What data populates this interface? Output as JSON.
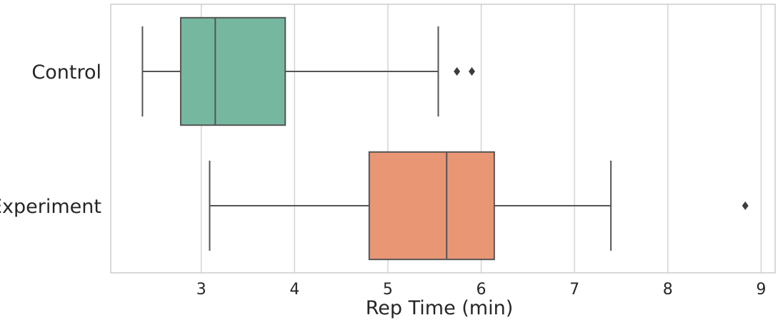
{
  "chart_data": {
    "type": "boxplot",
    "orientation": "horizontal",
    "xlabel": "Rep Time (min)",
    "ylabel": "",
    "xlim": [
      2.03,
      9.15
    ],
    "xticks": [
      3,
      4,
      5,
      6,
      7,
      8,
      9
    ],
    "grid": "vertical",
    "categories": [
      "Control",
      "Experiment"
    ],
    "boxes": [
      {
        "category": "Control",
        "color": "#76b7a0",
        "whisker_low": 2.37,
        "q1": 2.78,
        "median": 3.15,
        "q3": 3.9,
        "whisker_high": 5.54,
        "outliers": [
          5.74,
          5.9
        ]
      },
      {
        "category": "Experiment",
        "color": "#e99675",
        "whisker_low": 3.09,
        "q1": 4.8,
        "median": 5.63,
        "q3": 6.14,
        "whisker_high": 7.39,
        "outliers": [
          8.83
        ]
      }
    ]
  }
}
